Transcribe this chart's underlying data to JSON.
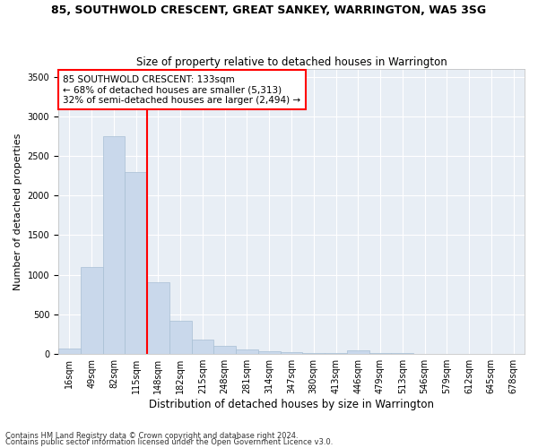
{
  "title": "85, SOUTHWOLD CRESCENT, GREAT SANKEY, WARRINGTON, WA5 3SG",
  "subtitle": "Size of property relative to detached houses in Warrington",
  "xlabel": "Distribution of detached houses by size in Warrington",
  "ylabel": "Number of detached properties",
  "bar_color": "#c9d8eb",
  "bar_edge_color": "#a8bfd4",
  "bg_color": "#e8eef5",
  "grid_color": "#ffffff",
  "annotation_text_line1": "85 SOUTHWOLD CRESCENT: 133sqm",
  "annotation_text_line2": "← 68% of detached houses are smaller (5,313)",
  "annotation_text_line3": "32% of semi-detached houses are larger (2,494) →",
  "footer1": "Contains HM Land Registry data © Crown copyright and database right 2024.",
  "footer2": "Contains public sector information licensed under the Open Government Licence v3.0.",
  "categories": [
    "16sqm",
    "49sqm",
    "82sqm",
    "115sqm",
    "148sqm",
    "182sqm",
    "215sqm",
    "248sqm",
    "281sqm",
    "314sqm",
    "347sqm",
    "380sqm",
    "413sqm",
    "446sqm",
    "479sqm",
    "513sqm",
    "546sqm",
    "579sqm",
    "612sqm",
    "645sqm",
    "678sqm"
  ],
  "values": [
    60,
    1100,
    2750,
    2300,
    900,
    420,
    175,
    100,
    55,
    35,
    20,
    10,
    8,
    40,
    5,
    3,
    2,
    1,
    1,
    1,
    1
  ],
  "ylim": [
    0,
    3600
  ],
  "yticks": [
    0,
    500,
    1000,
    1500,
    2000,
    2500,
    3000,
    3500
  ],
  "red_line_x": 3.5,
  "title_fontsize": 9,
  "subtitle_fontsize": 8.5,
  "ylabel_fontsize": 8,
  "xlabel_fontsize": 8.5,
  "tick_fontsize": 7,
  "annot_fontsize": 7.5,
  "footer_fontsize": 6
}
